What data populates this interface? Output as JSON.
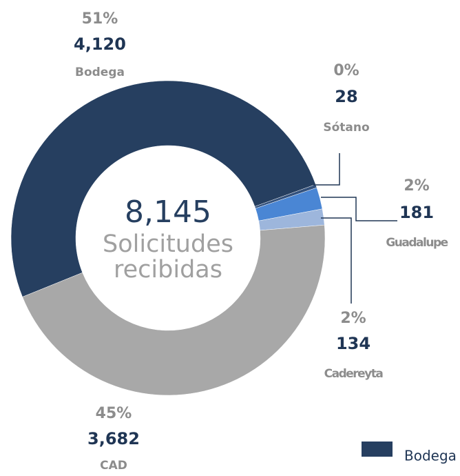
{
  "chart_data": {
    "type": "donut",
    "categories": [
      "Bodega",
      "Sótano",
      "Guadalupe",
      "Cadereyta",
      "CAD"
    ],
    "values": [
      4120,
      28,
      181,
      134,
      3682
    ],
    "value_labels": [
      "4,120",
      "28",
      "181",
      "134",
      "3,682"
    ],
    "percent_labels": [
      "51%",
      "0%",
      "2%",
      "2%",
      "45%"
    ],
    "colors": [
      "#263f60",
      "#34527d",
      "#4a86d4",
      "#9db6dc",
      "#a8a8a8"
    ],
    "center_label": "8,145",
    "center_text": [
      "Solicitudes",
      "recibidas"
    ],
    "legend": "bottom-right"
  }
}
